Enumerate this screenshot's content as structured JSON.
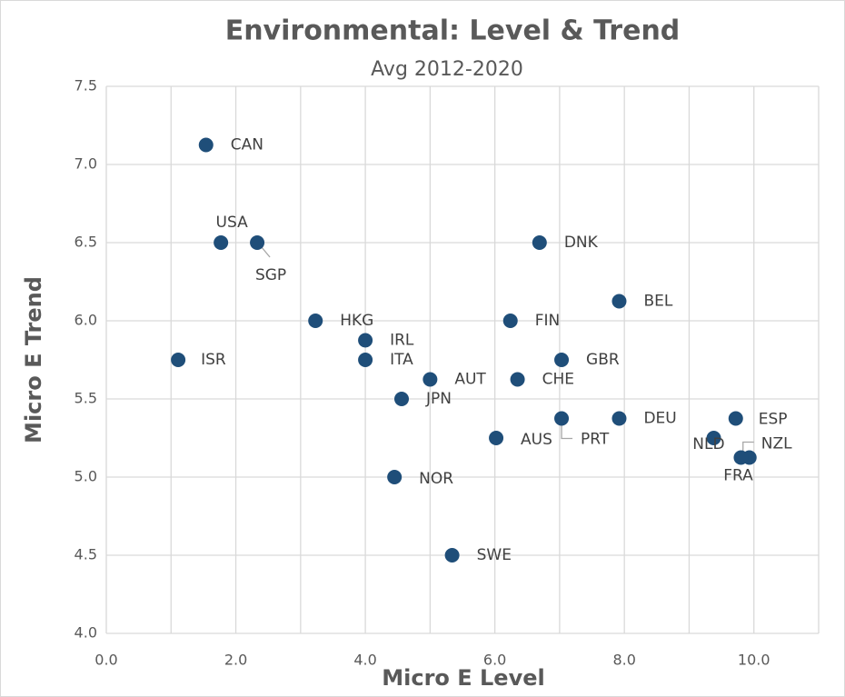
{
  "chart_data": {
    "type": "scatter",
    "title": "Environmental:  Level & Trend",
    "subtitle": "Avg 2012-2020",
    "x_label": "Micro E Level",
    "y_label": "Micro E Trend",
    "color": "#1f4e79",
    "grid": true,
    "xlim": [
      0,
      11
    ],
    "xticks": [
      {
        "value": 0,
        "label": "0.0"
      },
      {
        "value": 2,
        "label": "2.0"
      },
      {
        "value": 4,
        "label": "4.0"
      },
      {
        "value": 6,
        "label": "6.0"
      },
      {
        "value": 8,
        "label": "8.0"
      },
      {
        "value": 10,
        "label": "10.0"
      }
    ],
    "minor_xticks": [
      1,
      3,
      5,
      7,
      9,
      11
    ],
    "ylim": [
      4,
      7.5
    ],
    "yticks": [
      {
        "value": 4,
        "label": "4.0"
      },
      4.5,
      {
        "value": 5,
        "label": "5.0"
      },
      5.5,
      {
        "value": 6,
        "label": "6.0"
      },
      6.5,
      {
        "value": 7,
        "label": "7.0"
      },
      7.5
    ],
    "labels": [
      "CAN",
      "USA",
      "SGP",
      "HKG",
      "IRL",
      "ITA",
      "ISR",
      "AUT",
      "JPN",
      "NOR",
      "SWE",
      "DNK",
      "BEL",
      "FIN",
      "GBR",
      "CHE",
      "AUS",
      "PRT",
      "DEU",
      "NLD",
      "ESP",
      "NZL",
      "FRA"
    ],
    "x": [
      1.54,
      1.77,
      2.33,
      3.23,
      4.0,
      4.0,
      1.11,
      5.0,
      4.56,
      4.45,
      5.34,
      6.69,
      7.92,
      6.24,
      7.03,
      6.35,
      6.02,
      7.03,
      7.92,
      9.38,
      9.72,
      9.93,
      9.8
    ],
    "y": [
      7.125,
      6.5,
      6.5,
      6.0,
      5.875,
      5.75,
      5.75,
      5.625,
      5.5,
      5.0,
      4.5,
      6.5,
      6.125,
      6.0,
      5.75,
      5.625,
      5.25,
      5.375,
      5.375,
      5.25,
      5.375,
      5.125,
      5.125
    ]
  }
}
